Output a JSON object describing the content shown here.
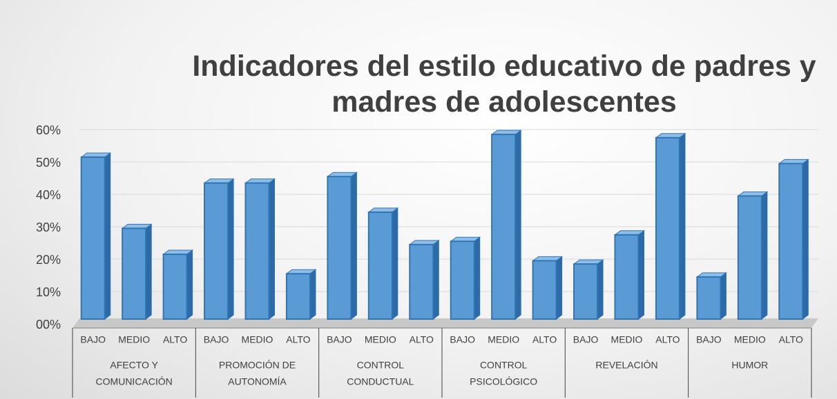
{
  "chart_data": {
    "type": "bar3d",
    "title": "Indicadores del estilo educativo de padres y madres de adolescentes",
    "categories": [
      "BAJO",
      "MEDIO",
      "ALTO",
      "BAJO",
      "MEDIO",
      "ALTO",
      "BAJO",
      "MEDIO",
      "ALTO",
      "BAJO",
      "MEDIO",
      "ALTO",
      "BAJO",
      "MEDIO",
      "ALTO",
      "BAJO",
      "MEDIO",
      "ALTO"
    ],
    "groups": [
      [
        "AFECTO Y",
        "COMUNICACIÓN"
      ],
      [
        "PROMOCIÓN DE",
        "AUTONOMÍA"
      ],
      [
        "CONTROL",
        "CONDUCTUAL"
      ],
      [
        "CONTROL",
        "PSICOLÓGICO"
      ],
      [
        "REVELACIÓN"
      ],
      [
        "HUMOR"
      ]
    ],
    "values": [
      50,
      28,
      20,
      42,
      42,
      14,
      44,
      33,
      23,
      24,
      57,
      18,
      17,
      26,
      56,
      13,
      38,
      48
    ],
    "color": "#5b9bd5",
    "ylim": [
      0,
      60
    ],
    "yticks": [
      {
        "value": 0,
        "label": "00%"
      },
      {
        "value": 10,
        "label": "10%"
      },
      {
        "value": 20,
        "label": "20%"
      },
      {
        "value": 30,
        "label": "30%"
      },
      {
        "value": 40,
        "label": "40%"
      },
      {
        "value": 50,
        "label": "50%"
      },
      {
        "value": 60,
        "label": "60%"
      }
    ],
    "grid": true
  }
}
